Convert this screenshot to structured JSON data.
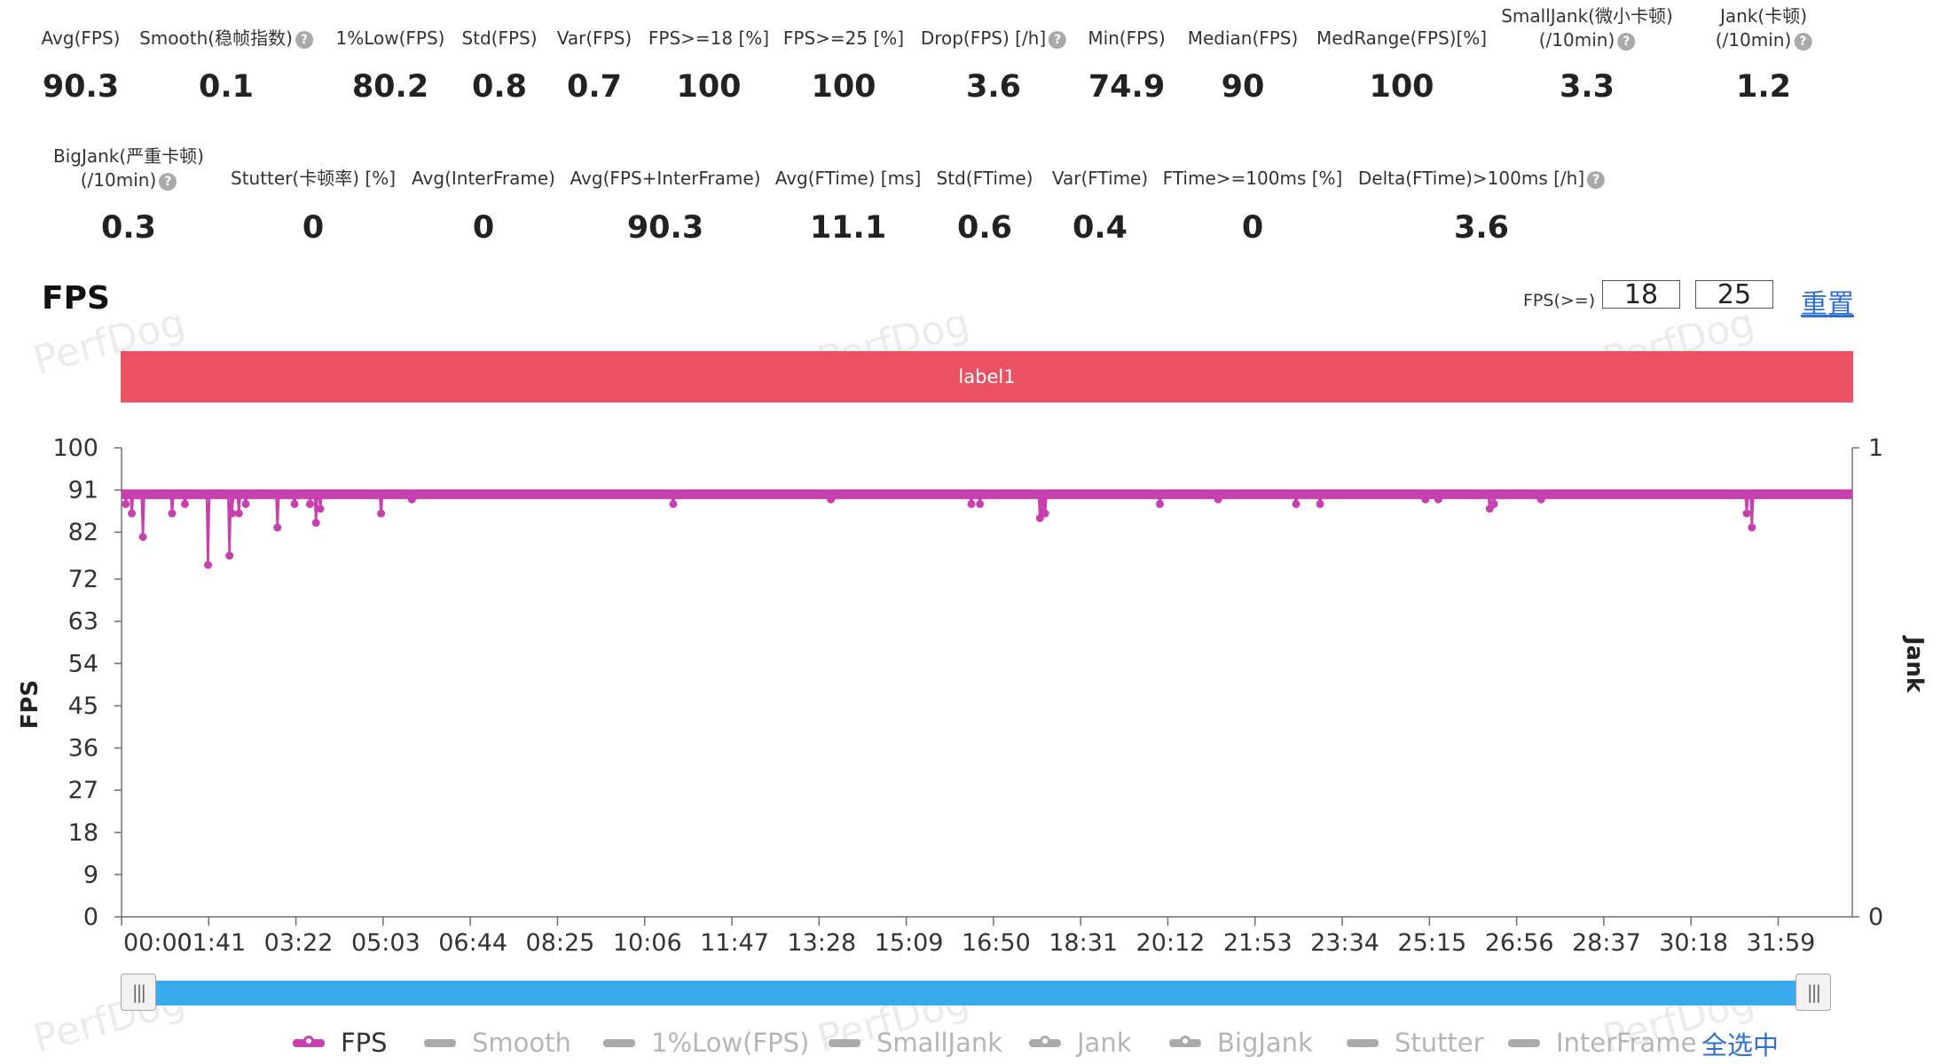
{
  "stats_row1": [
    {
      "label": "Avg(FPS)",
      "value": "90.3",
      "help": false
    },
    {
      "label": "Smooth(稳帧指数)",
      "value": "0.1",
      "help": true
    },
    {
      "label": "1%Low(FPS)",
      "value": "80.2",
      "help": false
    },
    {
      "label": "Std(FPS)",
      "value": "0.8",
      "help": false
    },
    {
      "label": "Var(FPS)",
      "value": "0.7",
      "help": false
    },
    {
      "label": "FPS>=18 [%]",
      "value": "100",
      "help": false
    },
    {
      "label": "FPS>=25 [%]",
      "value": "100",
      "help": false
    },
    {
      "label": "Drop(FPS) [/h]",
      "value": "3.6",
      "help": true
    },
    {
      "label": "Min(FPS)",
      "value": "74.9",
      "help": false
    },
    {
      "label": "Median(FPS)",
      "value": "90",
      "help": false
    },
    {
      "label": "MedRange(FPS)[%]",
      "value": "100",
      "help": false
    },
    {
      "label": "SmallJank(微小卡顿)",
      "label2": "(/10min)",
      "value": "3.3",
      "help": true
    },
    {
      "label": "Jank(卡顿)",
      "label2": "(/10min)",
      "value": "1.2",
      "help": true
    }
  ],
  "stats_row2": [
    {
      "label": "BigJank(严重卡顿)",
      "label2": "(/10min)",
      "value": "0.3",
      "help": true
    },
    {
      "label": "Stutter(卡顿率) [%]",
      "value": "0",
      "help": false
    },
    {
      "label": "Avg(InterFrame)",
      "value": "0",
      "help": false
    },
    {
      "label": "Avg(FPS+InterFrame)",
      "value": "90.3",
      "help": false
    },
    {
      "label": "Avg(FTime) [ms]",
      "value": "11.1",
      "help": false
    },
    {
      "label": "Std(FTime)",
      "value": "0.6",
      "help": false
    },
    {
      "label": "Var(FTime)",
      "value": "0.4",
      "help": false
    },
    {
      "label": "FTime>=100ms [%]",
      "value": "0",
      "help": false
    },
    {
      "label": "Delta(FTime)>100ms [/h]",
      "value": "3.6",
      "help": true
    }
  ],
  "section": {
    "title": "FPS"
  },
  "thresholds": {
    "label": "FPS(>=)",
    "low": "18",
    "high": "25",
    "reset": "重置"
  },
  "label_bar": {
    "text": "label1",
    "color": "#ea5263"
  },
  "watermark": "PerfDog",
  "slider": {
    "handle_glyph": "|||"
  },
  "legend": {
    "select_all": "全选中",
    "items": [
      {
        "name": "FPS",
        "color": "#c93fb0",
        "active": true,
        "dot": true
      },
      {
        "name": "Smooth",
        "color": "#aaaaaa",
        "active": false,
        "dot": false
      },
      {
        "name": "1%Low(FPS)",
        "color": "#aaaaaa",
        "active": false,
        "dot": false
      },
      {
        "name": "SmallJank",
        "color": "#aaaaaa",
        "active": false,
        "dot": false
      },
      {
        "name": "Jank",
        "color": "#aaaaaa",
        "active": false,
        "dot": true
      },
      {
        "name": "BigJank",
        "color": "#aaaaaa",
        "active": false,
        "dot": true
      },
      {
        "name": "Stutter",
        "color": "#aaaaaa",
        "active": false,
        "dot": false
      },
      {
        "name": "InterFrame",
        "color": "#aaaaaa",
        "active": false,
        "dot": false
      }
    ]
  },
  "chart_data": {
    "type": "line",
    "ylabel": "FPS",
    "y2label": "Jank",
    "ylim": [
      0,
      100
    ],
    "y_ticks": [
      0,
      9,
      18,
      27,
      36,
      45,
      54,
      63,
      72,
      82,
      91,
      100
    ],
    "y2_ticks": [
      0,
      1
    ],
    "x_tick_labels": [
      "00:00",
      "01:41",
      "03:22",
      "05:03",
      "06:44",
      "08:25",
      "10:06",
      "11:47",
      "13:28",
      "15:09",
      "16:50",
      "18:31",
      "20:12",
      "21:53",
      "23:34",
      "25:15",
      "26:56",
      "28:37",
      "30:18",
      "31:59"
    ],
    "xlim_minutes": [
      0,
      33.67
    ],
    "baseline_fps": 90,
    "series": [
      {
        "name": "FPS",
        "color": "#c93fb0",
        "dips": [
          {
            "t": "00:05",
            "fps": 88
          },
          {
            "t": "00:12",
            "fps": 86
          },
          {
            "t": "00:25",
            "fps": 81
          },
          {
            "t": "00:59",
            "fps": 86
          },
          {
            "t": "01:14",
            "fps": 88
          },
          {
            "t": "01:41",
            "fps": 75
          },
          {
            "t": "02:06",
            "fps": 77
          },
          {
            "t": "02:09",
            "fps": 86
          },
          {
            "t": "02:17",
            "fps": 86
          },
          {
            "t": "02:25",
            "fps": 88
          },
          {
            "t": "03:02",
            "fps": 83
          },
          {
            "t": "03:22",
            "fps": 88
          },
          {
            "t": "03:40",
            "fps": 88
          },
          {
            "t": "03:47",
            "fps": 84
          },
          {
            "t": "03:52",
            "fps": 87
          },
          {
            "t": "05:03",
            "fps": 86
          },
          {
            "t": "05:39",
            "fps": 89
          },
          {
            "t": "10:44",
            "fps": 88
          },
          {
            "t": "13:48",
            "fps": 89
          },
          {
            "t": "16:32",
            "fps": 88
          },
          {
            "t": "16:42",
            "fps": 88
          },
          {
            "t": "17:52",
            "fps": 85
          },
          {
            "t": "17:55",
            "fps": 86
          },
          {
            "t": "17:58",
            "fps": 86
          },
          {
            "t": "20:12",
            "fps": 88
          },
          {
            "t": "21:20",
            "fps": 89
          },
          {
            "t": "22:51",
            "fps": 88
          },
          {
            "t": "23:19",
            "fps": 88
          },
          {
            "t": "25:22",
            "fps": 89
          },
          {
            "t": "25:37",
            "fps": 89
          },
          {
            "t": "26:37",
            "fps": 87
          },
          {
            "t": "26:42",
            "fps": 88
          },
          {
            "t": "27:37",
            "fps": 89
          },
          {
            "t": "31:37",
            "fps": 86
          },
          {
            "t": "31:43",
            "fps": 83
          }
        ]
      }
    ]
  }
}
